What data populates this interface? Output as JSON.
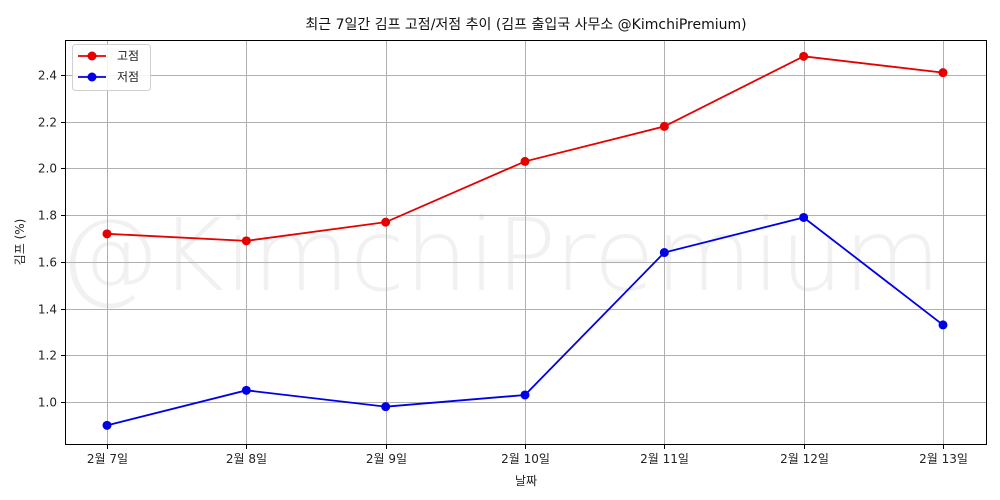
{
  "chart_data": {
    "type": "line",
    "title": "최근 7일간 김프 고점/저점 추이 (김프 출입국 사무소 @KimchiPremium)",
    "xlabel": "날짜",
    "ylabel": "김프 (%)",
    "categories": [
      "2월 7일",
      "2월 8일",
      "2월 9일",
      "2월 10일",
      "2월 11일",
      "2월 12일",
      "2월 13일"
    ],
    "series": [
      {
        "name": "고점",
        "color": "#e60000",
        "values": [
          1.72,
          1.69,
          1.77,
          2.03,
          2.18,
          2.48,
          2.41
        ]
      },
      {
        "name": "저점",
        "color": "#0000e6",
        "values": [
          0.9,
          1.05,
          0.98,
          1.03,
          1.64,
          1.79,
          1.33
        ]
      }
    ],
    "yticks": [
      "1.0",
      "1.2",
      "1.4",
      "1.6",
      "1.8",
      "2.0",
      "2.2",
      "2.4"
    ],
    "ylim": [
      0.82,
      2.56
    ],
    "grid": true,
    "legend_position": "upper left",
    "watermark": "@KimchiPremium"
  }
}
